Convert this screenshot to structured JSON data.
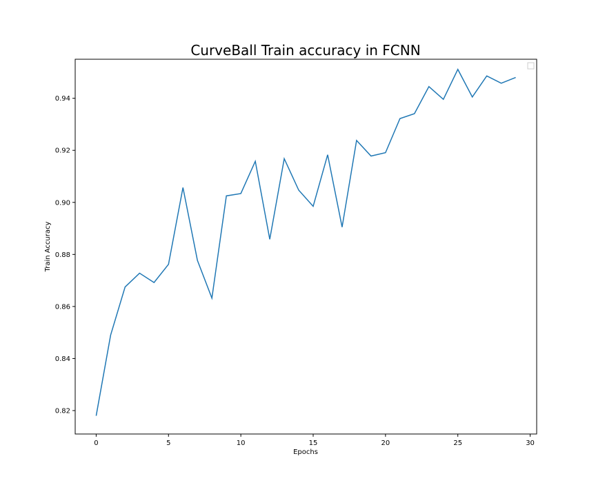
{
  "chart_data": {
    "type": "line",
    "title": "CurveBall Train accuracy in FCNN",
    "xlabel": "Epochs",
    "ylabel": "Train Accuracy",
    "xlim": [
      -1.45,
      30.45
    ],
    "ylim": [
      0.811,
      0.955
    ],
    "xticks": [
      0,
      5,
      10,
      15,
      20,
      25,
      30
    ],
    "yticks": [
      0.82,
      0.84,
      0.86,
      0.88,
      0.9,
      0.92,
      0.94
    ],
    "ytick_labels": [
      "0.82",
      "0.84",
      "0.86",
      "0.88",
      "0.90",
      "0.92",
      "0.94"
    ],
    "grid": false,
    "legend": "top-right (empty)",
    "series": [
      {
        "color": "#1f77b4",
        "x": [
          0,
          1,
          2,
          3,
          4,
          5,
          6,
          7,
          8,
          9,
          10,
          11,
          12,
          13,
          14,
          15,
          16,
          17,
          18,
          19,
          20,
          21,
          22,
          23,
          24,
          25,
          26,
          27,
          28,
          29
        ],
        "y": [
          0.818,
          0.849,
          0.8675,
          0.8728,
          0.8692,
          0.8762,
          0.9057,
          0.8777,
          0.8632,
          0.9025,
          0.9034,
          0.9158,
          0.8858,
          0.9168,
          0.9047,
          0.8985,
          0.9183,
          0.8905,
          0.9238,
          0.9178,
          0.9191,
          0.9322,
          0.9341,
          0.9445,
          0.9396,
          0.9511,
          0.9405,
          0.9486,
          0.9458,
          0.948
        ]
      }
    ]
  }
}
